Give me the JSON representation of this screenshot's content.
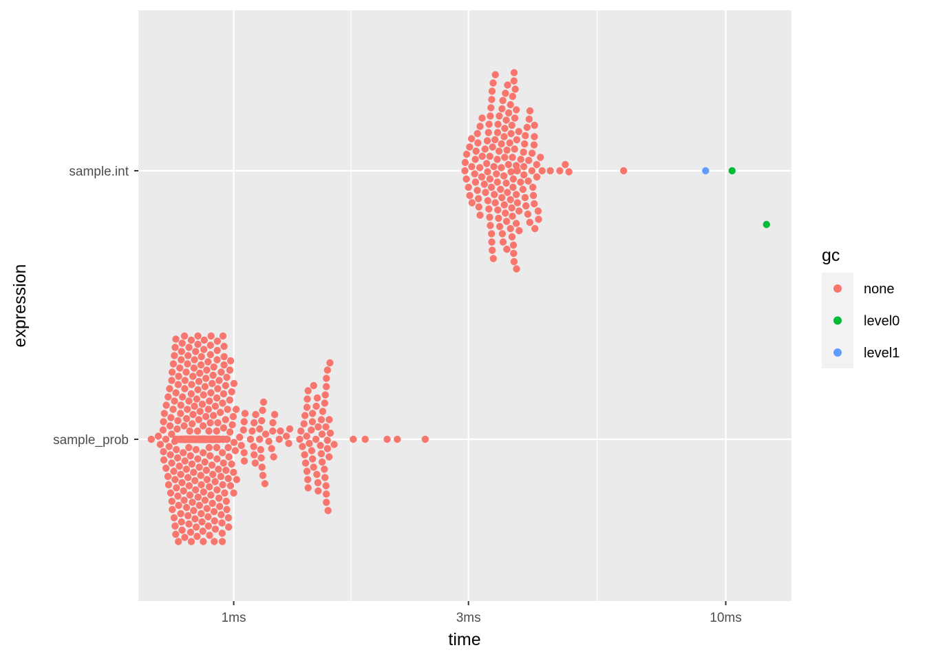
{
  "chart_data": {
    "type": "scatter",
    "subtype": "beeswarm",
    "x_scale": "log10",
    "x_unit": "ms",
    "xlabel": "time",
    "ylabel": "expression",
    "xlim": [
      0.64,
      13.6
    ],
    "x_ticks": [
      {
        "value": 1,
        "label": "1ms"
      },
      {
        "value": 3,
        "label": "3ms"
      },
      {
        "value": 10,
        "label": "10ms"
      }
    ],
    "categories": [
      "sample_prob",
      "sample.int"
    ],
    "grid": true,
    "legend": {
      "title": "gc",
      "position": "right",
      "entries": [
        {
          "name": "none",
          "color": "#F8766D"
        },
        {
          "name": "level0",
          "color": "#00BA38"
        },
        {
          "name": "level1",
          "color": "#619CFF"
        }
      ]
    },
    "groups": [
      {
        "expression": "sample.int",
        "gc": "none",
        "n": 160,
        "min_ms": 2.9,
        "max_ms": 6.2,
        "bulk_range_ms": [
          2.9,
          4.9
        ],
        "modal_ms": 3.3,
        "listed_points_ms": [
          2.95,
          2.97,
          3.0,
          3.05,
          3.1,
          3.2,
          3.25,
          3.3,
          3.35,
          3.4,
          3.5,
          3.6,
          3.7,
          3.8,
          3.9,
          4.0,
          4.2,
          4.4,
          4.6,
          4.8,
          6.2
        ]
      },
      {
        "expression": "sample.int",
        "gc": "level1",
        "n": 1,
        "points_ms": [
          9.1
        ]
      },
      {
        "expression": "sample.int",
        "gc": "level0",
        "n": 2,
        "points_ms": [
          10.3,
          12.1
        ]
      },
      {
        "expression": "sample_prob",
        "gc": "none",
        "n": 520,
        "min_ms": 0.68,
        "max_ms": 2.45,
        "bulk_range_ms": [
          0.7,
          1.6
        ],
        "modal_ms": 0.86,
        "listed_points_ms": [
          0.68,
          0.72,
          0.76,
          0.8,
          0.84,
          0.86,
          0.9,
          0.95,
          1.0,
          1.05,
          1.1,
          1.15,
          1.2,
          1.3,
          1.4,
          1.5,
          1.6,
          1.75,
          1.85,
          2.05,
          2.15,
          2.45
        ]
      }
    ]
  }
}
